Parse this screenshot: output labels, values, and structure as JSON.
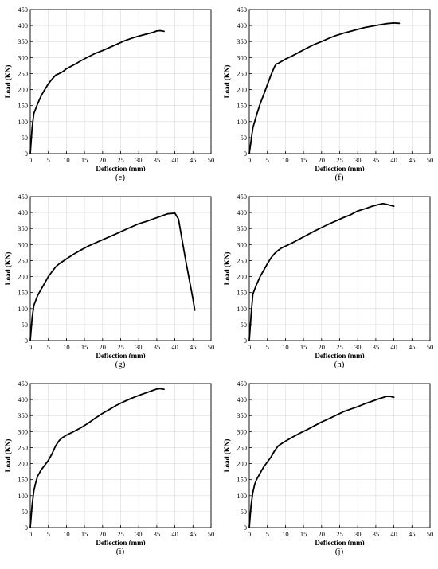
{
  "chart_data": [
    {
      "type": "line",
      "panel_label": "(e)",
      "xlabel": "Deflection (mm)",
      "ylabel": "Load (KN)",
      "xlim": [
        0,
        50
      ],
      "ylim": [
        0,
        450
      ],
      "xticks": [
        0,
        5,
        10,
        15,
        20,
        25,
        30,
        35,
        40,
        45,
        50
      ],
      "yticks": [
        0,
        50,
        100,
        150,
        200,
        250,
        300,
        350,
        400,
        450
      ],
      "grid": true,
      "series": [
        {
          "x": [
            0,
            0.5,
            1,
            2,
            3,
            4,
            5,
            6,
            7,
            8,
            9,
            10,
            12,
            14,
            16,
            18,
            20,
            22,
            24,
            26,
            28,
            30,
            32,
            34,
            35,
            36,
            37
          ],
          "y": [
            0,
            80,
            125,
            155,
            180,
            200,
            218,
            232,
            245,
            250,
            256,
            265,
            277,
            290,
            302,
            313,
            322,
            332,
            342,
            352,
            360,
            367,
            373,
            379,
            383,
            384,
            382
          ]
        }
      ]
    },
    {
      "type": "line",
      "panel_label": "(f)",
      "xlabel": "Deflection (mm)",
      "ylabel": "Load (KN)",
      "xlim": [
        0,
        50
      ],
      "ylim": [
        0,
        450
      ],
      "xticks": [
        0,
        5,
        10,
        15,
        20,
        25,
        30,
        35,
        40,
        45,
        50
      ],
      "yticks": [
        0,
        50,
        100,
        150,
        200,
        250,
        300,
        350,
        400,
        450
      ],
      "grid": true,
      "series": [
        {
          "x": [
            0,
            0.5,
            1,
            2,
            3,
            4,
            5,
            6,
            7,
            7.5,
            8,
            10,
            12,
            14,
            16,
            18,
            20,
            22,
            24,
            26,
            28,
            30,
            32,
            34,
            36,
            38,
            40,
            41.5
          ],
          "y": [
            0,
            40,
            80,
            120,
            155,
            185,
            215,
            245,
            272,
            280,
            282,
            295,
            306,
            318,
            330,
            341,
            350,
            360,
            369,
            376,
            382,
            388,
            394,
            398,
            402,
            406,
            408,
            407
          ]
        }
      ]
    },
    {
      "type": "line",
      "panel_label": "(g)",
      "xlabel": "Deflection (mm)",
      "ylabel": "Load (KN)",
      "xlim": [
        0,
        50
      ],
      "ylim": [
        0,
        450
      ],
      "xticks": [
        0,
        5,
        10,
        15,
        20,
        25,
        30,
        35,
        40,
        45,
        50
      ],
      "yticks": [
        0,
        50,
        100,
        150,
        200,
        250,
        300,
        350,
        400,
        450
      ],
      "grid": true,
      "series": [
        {
          "x": [
            0,
            0.5,
            1,
            1.5,
            2,
            3,
            4,
            5,
            6,
            7,
            8,
            10,
            12,
            14,
            16,
            18,
            20,
            22,
            24,
            26,
            28,
            30,
            32,
            34,
            36,
            38,
            40,
            41,
            43,
            45,
            45.5
          ],
          "y": [
            0,
            70,
            110,
            125,
            140,
            160,
            180,
            200,
            215,
            230,
            240,
            255,
            270,
            283,
            295,
            305,
            315,
            325,
            335,
            345,
            355,
            365,
            372,
            380,
            388,
            396,
            398,
            380,
            250,
            130,
            95
          ]
        }
      ]
    },
    {
      "type": "line",
      "panel_label": "(h)",
      "xlabel": "Deflection (mm)",
      "ylabel": "Load (KN)",
      "xlim": [
        0,
        50
      ],
      "ylim": [
        0,
        450
      ],
      "xticks": [
        0,
        5,
        10,
        15,
        20,
        25,
        30,
        35,
        40,
        45,
        50
      ],
      "yticks": [
        0,
        50,
        100,
        150,
        200,
        250,
        300,
        350,
        400,
        450
      ],
      "grid": true,
      "series": [
        {
          "x": [
            0,
            0.5,
            1,
            2,
            3,
            4,
            5,
            6,
            7,
            8,
            9,
            10,
            12,
            14,
            16,
            18,
            20,
            22,
            24,
            26,
            28,
            30,
            32,
            34,
            36,
            37,
            38,
            40
          ],
          "y": [
            0,
            80,
            145,
            175,
            200,
            220,
            240,
            258,
            272,
            282,
            290,
            295,
            306,
            318,
            330,
            342,
            353,
            364,
            374,
            384,
            393,
            405,
            412,
            420,
            426,
            428,
            426,
            420
          ]
        }
      ]
    },
    {
      "type": "line",
      "panel_label": "(i)",
      "xlabel": "Deflection (mm)",
      "ylabel": "Load (KN)",
      "xlim": [
        0,
        50
      ],
      "ylim": [
        0,
        450
      ],
      "xticks": [
        0,
        5,
        10,
        15,
        20,
        25,
        30,
        35,
        40,
        45,
        50
      ],
      "yticks": [
        0,
        50,
        100,
        150,
        200,
        250,
        300,
        350,
        400,
        450
      ],
      "grid": true,
      "series": [
        {
          "x": [
            0,
            0.5,
            1,
            1.5,
            2,
            3,
            4,
            5,
            6,
            7,
            8,
            9,
            10,
            12,
            14,
            16,
            18,
            20,
            22,
            24,
            26,
            28,
            30,
            32,
            34,
            35,
            36,
            37
          ],
          "y": [
            0,
            70,
            115,
            140,
            160,
            180,
            195,
            210,
            230,
            255,
            272,
            282,
            289,
            300,
            312,
            326,
            342,
            357,
            370,
            383,
            394,
            404,
            413,
            421,
            429,
            433,
            434,
            432
          ]
        }
      ]
    },
    {
      "type": "line",
      "panel_label": "(j)",
      "xlabel": "Deflection (mm)",
      "ylabel": "Load (KN)",
      "xlim": [
        0,
        50
      ],
      "ylim": [
        0,
        450
      ],
      "xticks": [
        0,
        5,
        10,
        15,
        20,
        25,
        30,
        35,
        40,
        45,
        50
      ],
      "yticks": [
        0,
        50,
        100,
        150,
        200,
        250,
        300,
        350,
        400,
        450
      ],
      "grid": true,
      "series": [
        {
          "x": [
            0,
            0.5,
            1,
            1.5,
            2,
            3,
            4,
            5,
            6,
            7,
            8,
            9,
            10,
            12,
            14,
            16,
            18,
            20,
            22,
            24,
            26,
            28,
            30,
            32,
            34,
            36,
            38,
            39,
            40
          ],
          "y": [
            0,
            70,
            110,
            135,
            150,
            170,
            190,
            205,
            220,
            240,
            255,
            263,
            270,
            283,
            295,
            306,
            318,
            330,
            340,
            351,
            362,
            370,
            378,
            387,
            395,
            403,
            410,
            410,
            407
          ]
        }
      ]
    }
  ]
}
